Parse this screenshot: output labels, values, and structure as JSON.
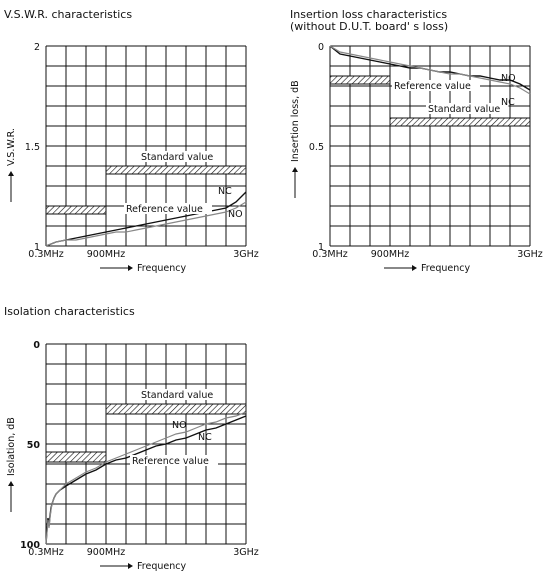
{
  "chart_data": [
    {
      "type": "line",
      "title": "V.S.W.R. characteristics",
      "xlabel": "Frequency",
      "ylabel": "V.S.W.R.",
      "ylim": [
        1,
        2
      ],
      "x_ticks": [
        "0.3MHz",
        "900MHz",
        "3GHz"
      ],
      "y_ticks": [
        "2",
        "1.5",
        "1"
      ],
      "grid": true,
      "series": [
        {
          "name": "NC",
          "x": [
            0,
            0.05,
            0.1,
            0.15,
            0.2,
            0.25,
            0.3,
            0.35,
            0.4,
            0.45,
            0.5,
            0.55,
            0.6,
            0.65,
            0.7,
            0.75,
            0.8,
            0.85,
            0.9,
            0.95,
            1.0
          ],
          "values": [
            1.0,
            1.02,
            1.03,
            1.04,
            1.05,
            1.06,
            1.07,
            1.08,
            1.09,
            1.1,
            1.11,
            1.12,
            1.13,
            1.14,
            1.15,
            1.16,
            1.17,
            1.18,
            1.19,
            1.22,
            1.27
          ]
        },
        {
          "name": "NO",
          "x": [
            0,
            0.05,
            0.1,
            0.15,
            0.2,
            0.25,
            0.3,
            0.35,
            0.4,
            0.45,
            0.5,
            0.55,
            0.6,
            0.65,
            0.7,
            0.75,
            0.8,
            0.85,
            0.9,
            0.95,
            1.0
          ],
          "values": [
            1.0,
            1.02,
            1.03,
            1.03,
            1.04,
            1.05,
            1.06,
            1.07,
            1.07,
            1.08,
            1.09,
            1.1,
            1.11,
            1.12,
            1.13,
            1.14,
            1.15,
            1.16,
            1.17,
            1.19,
            1.22
          ]
        }
      ],
      "bands": [
        {
          "label": "Standard value",
          "x_range": [
            0.3,
            1.0
          ],
          "y_range": [
            1.36,
            1.4
          ]
        },
        {
          "label": "Reference value",
          "x_range": [
            0,
            0.3
          ],
          "y_range": [
            1.16,
            1.2
          ]
        }
      ]
    },
    {
      "type": "line",
      "title": "Insertion loss characteristics",
      "subtitle": "(without D.U.T. board' s loss)",
      "xlabel": "Frequency",
      "ylabel": "Insertion loss, dB",
      "ylim": [
        0,
        1
      ],
      "y_inverted": true,
      "x_ticks": [
        "0.3MHz",
        "900MHz",
        "3GHz"
      ],
      "y_ticks": [
        "0",
        "0.5",
        "1"
      ],
      "grid": true,
      "series": [
        {
          "name": "NO",
          "x": [
            0,
            0.05,
            0.1,
            0.15,
            0.2,
            0.25,
            0.3,
            0.35,
            0.4,
            0.45,
            0.5,
            0.55,
            0.6,
            0.65,
            0.7,
            0.75,
            0.8,
            0.85,
            0.9,
            0.95,
            1.0
          ],
          "values": [
            0.0,
            0.04,
            0.05,
            0.06,
            0.07,
            0.08,
            0.09,
            0.1,
            0.11,
            0.11,
            0.12,
            0.13,
            0.13,
            0.14,
            0.15,
            0.15,
            0.16,
            0.17,
            0.17,
            0.19,
            0.22
          ]
        },
        {
          "name": "NC",
          "x": [
            0,
            0.05,
            0.1,
            0.15,
            0.2,
            0.25,
            0.3,
            0.35,
            0.4,
            0.45,
            0.5,
            0.55,
            0.6,
            0.65,
            0.7,
            0.75,
            0.8,
            0.85,
            0.9,
            0.95,
            1.0
          ],
          "values": [
            0.0,
            0.03,
            0.04,
            0.05,
            0.06,
            0.07,
            0.08,
            0.09,
            0.1,
            0.11,
            0.12,
            0.13,
            0.14,
            0.14,
            0.15,
            0.16,
            0.17,
            0.18,
            0.19,
            0.21,
            0.24
          ]
        }
      ],
      "bands": [
        {
          "label": "Reference value",
          "x_range": [
            0,
            0.3
          ],
          "y_range": [
            0.15,
            0.19
          ]
        },
        {
          "label": "Standard value",
          "x_range": [
            0.3,
            1.0
          ],
          "y_range": [
            0.36,
            0.4
          ]
        }
      ]
    },
    {
      "type": "line",
      "title": "Isolation characteristics",
      "xlabel": "Frequency",
      "ylabel": "Isolation, dB",
      "ylim": [
        0,
        100
      ],
      "y_inverted": true,
      "x_ticks": [
        "0.3MHz",
        "900MHz",
        "3GHz"
      ],
      "y_ticks": [
        "0",
        "50",
        "100"
      ],
      "grid": true,
      "series": [
        {
          "name": "NO",
          "x": [
            0,
            0.005,
            0.01,
            0.015,
            0.02,
            0.025,
            0.03,
            0.04,
            0.05,
            0.07,
            0.1,
            0.15,
            0.2,
            0.25,
            0.3,
            0.35,
            0.4,
            0.45,
            0.5,
            0.55,
            0.6,
            0.65,
            0.7,
            0.75,
            0.8,
            0.85,
            0.9,
            0.95,
            1.0
          ],
          "values": [
            100,
            93,
            87,
            91,
            86,
            82,
            80,
            77,
            75,
            73,
            71,
            68,
            65,
            63,
            60,
            58,
            57,
            55,
            53,
            51,
            50,
            48,
            47,
            45,
            43,
            42,
            40,
            38,
            36
          ]
        },
        {
          "name": "NC",
          "x": [
            0,
            0.005,
            0.01,
            0.015,
            0.02,
            0.025,
            0.03,
            0.04,
            0.05,
            0.07,
            0.1,
            0.15,
            0.2,
            0.25,
            0.3,
            0.35,
            0.4,
            0.45,
            0.5,
            0.55,
            0.6,
            0.65,
            0.7,
            0.75,
            0.8,
            0.85,
            0.9,
            0.95,
            1.0
          ],
          "values": [
            100,
            94,
            88,
            92,
            87,
            83,
            80,
            77,
            75,
            73,
            70,
            67,
            64,
            62,
            59,
            57,
            55,
            53,
            51,
            49,
            47,
            45,
            44,
            42,
            40,
            39,
            37,
            36,
            34
          ]
        }
      ],
      "bands": [
        {
          "label": "Standard value",
          "x_range": [
            0.3,
            1.0
          ],
          "y_range": [
            30,
            35
          ]
        },
        {
          "label": "Reference value",
          "x_range": [
            0,
            0.3
          ],
          "y_range": [
            54,
            59
          ]
        }
      ]
    }
  ]
}
